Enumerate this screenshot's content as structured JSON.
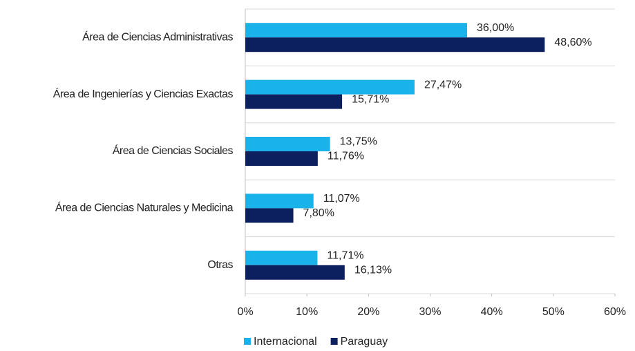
{
  "chart_data": {
    "type": "hbar",
    "categories": [
      "Área de Ciencias Administrativas",
      "Área de Ingenierías y Ciencias Exactas",
      "Área de Ciencias Sociales",
      "Área de Ciencias Naturales y Medicina",
      "Otras"
    ],
    "series": [
      {
        "name": "Internacional",
        "color": "#1ab2ea",
        "values": [
          36.0,
          27.47,
          13.75,
          11.07,
          11.71
        ],
        "value_labels": [
          "36,00%",
          "27,47%",
          "13,75%",
          "11,07%",
          "11,71%"
        ]
      },
      {
        "name": "Paraguay",
        "color": "#0c1f5e",
        "values": [
          48.6,
          15.71,
          11.76,
          7.8,
          16.13
        ],
        "value_labels": [
          "48,60%",
          "15,71%",
          "11,76%",
          "7,80%",
          "16,13%"
        ]
      }
    ],
    "xlim": [
      0,
      60
    ],
    "xticks": [
      {
        "value": 0,
        "label": "0%"
      },
      {
        "value": 10,
        "label": "10%"
      },
      {
        "value": 20,
        "label": "20%"
      },
      {
        "value": 30,
        "label": "30%"
      },
      {
        "value": 40,
        "label": "40%"
      },
      {
        "value": 50,
        "label": "50%"
      },
      {
        "value": 60,
        "label": "60%"
      }
    ],
    "legend": "bottom"
  }
}
